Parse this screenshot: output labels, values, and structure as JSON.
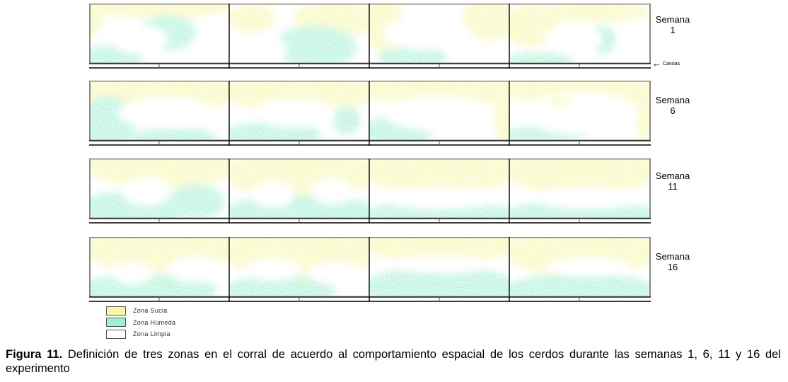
{
  "figure": {
    "rows": [
      {
        "week_label": "Semana",
        "week_number": "1"
      },
      {
        "week_label": "Semana",
        "week_number": "6"
      },
      {
        "week_label": "Semana",
        "week_number": "11"
      },
      {
        "week_label": "Semana",
        "week_number": "16"
      }
    ],
    "annotation": {
      "arrow": "←",
      "label": "Canoas"
    },
    "legend": [
      {
        "label": "Zona Sucia",
        "color": "#f7f7a8"
      },
      {
        "label": "Zona Húmeda",
        "color": "#9ff0d2"
      },
      {
        "label": "Zona Limpia",
        "color": "#ffffff"
      }
    ]
  },
  "caption": {
    "label": "Figura 11.",
    "text": " Definición de tres zonas en el corral de acuerdo al comportamiento espacial de los cerdos durante las semanas 1, 6, 11 y 16 del experimento"
  }
}
